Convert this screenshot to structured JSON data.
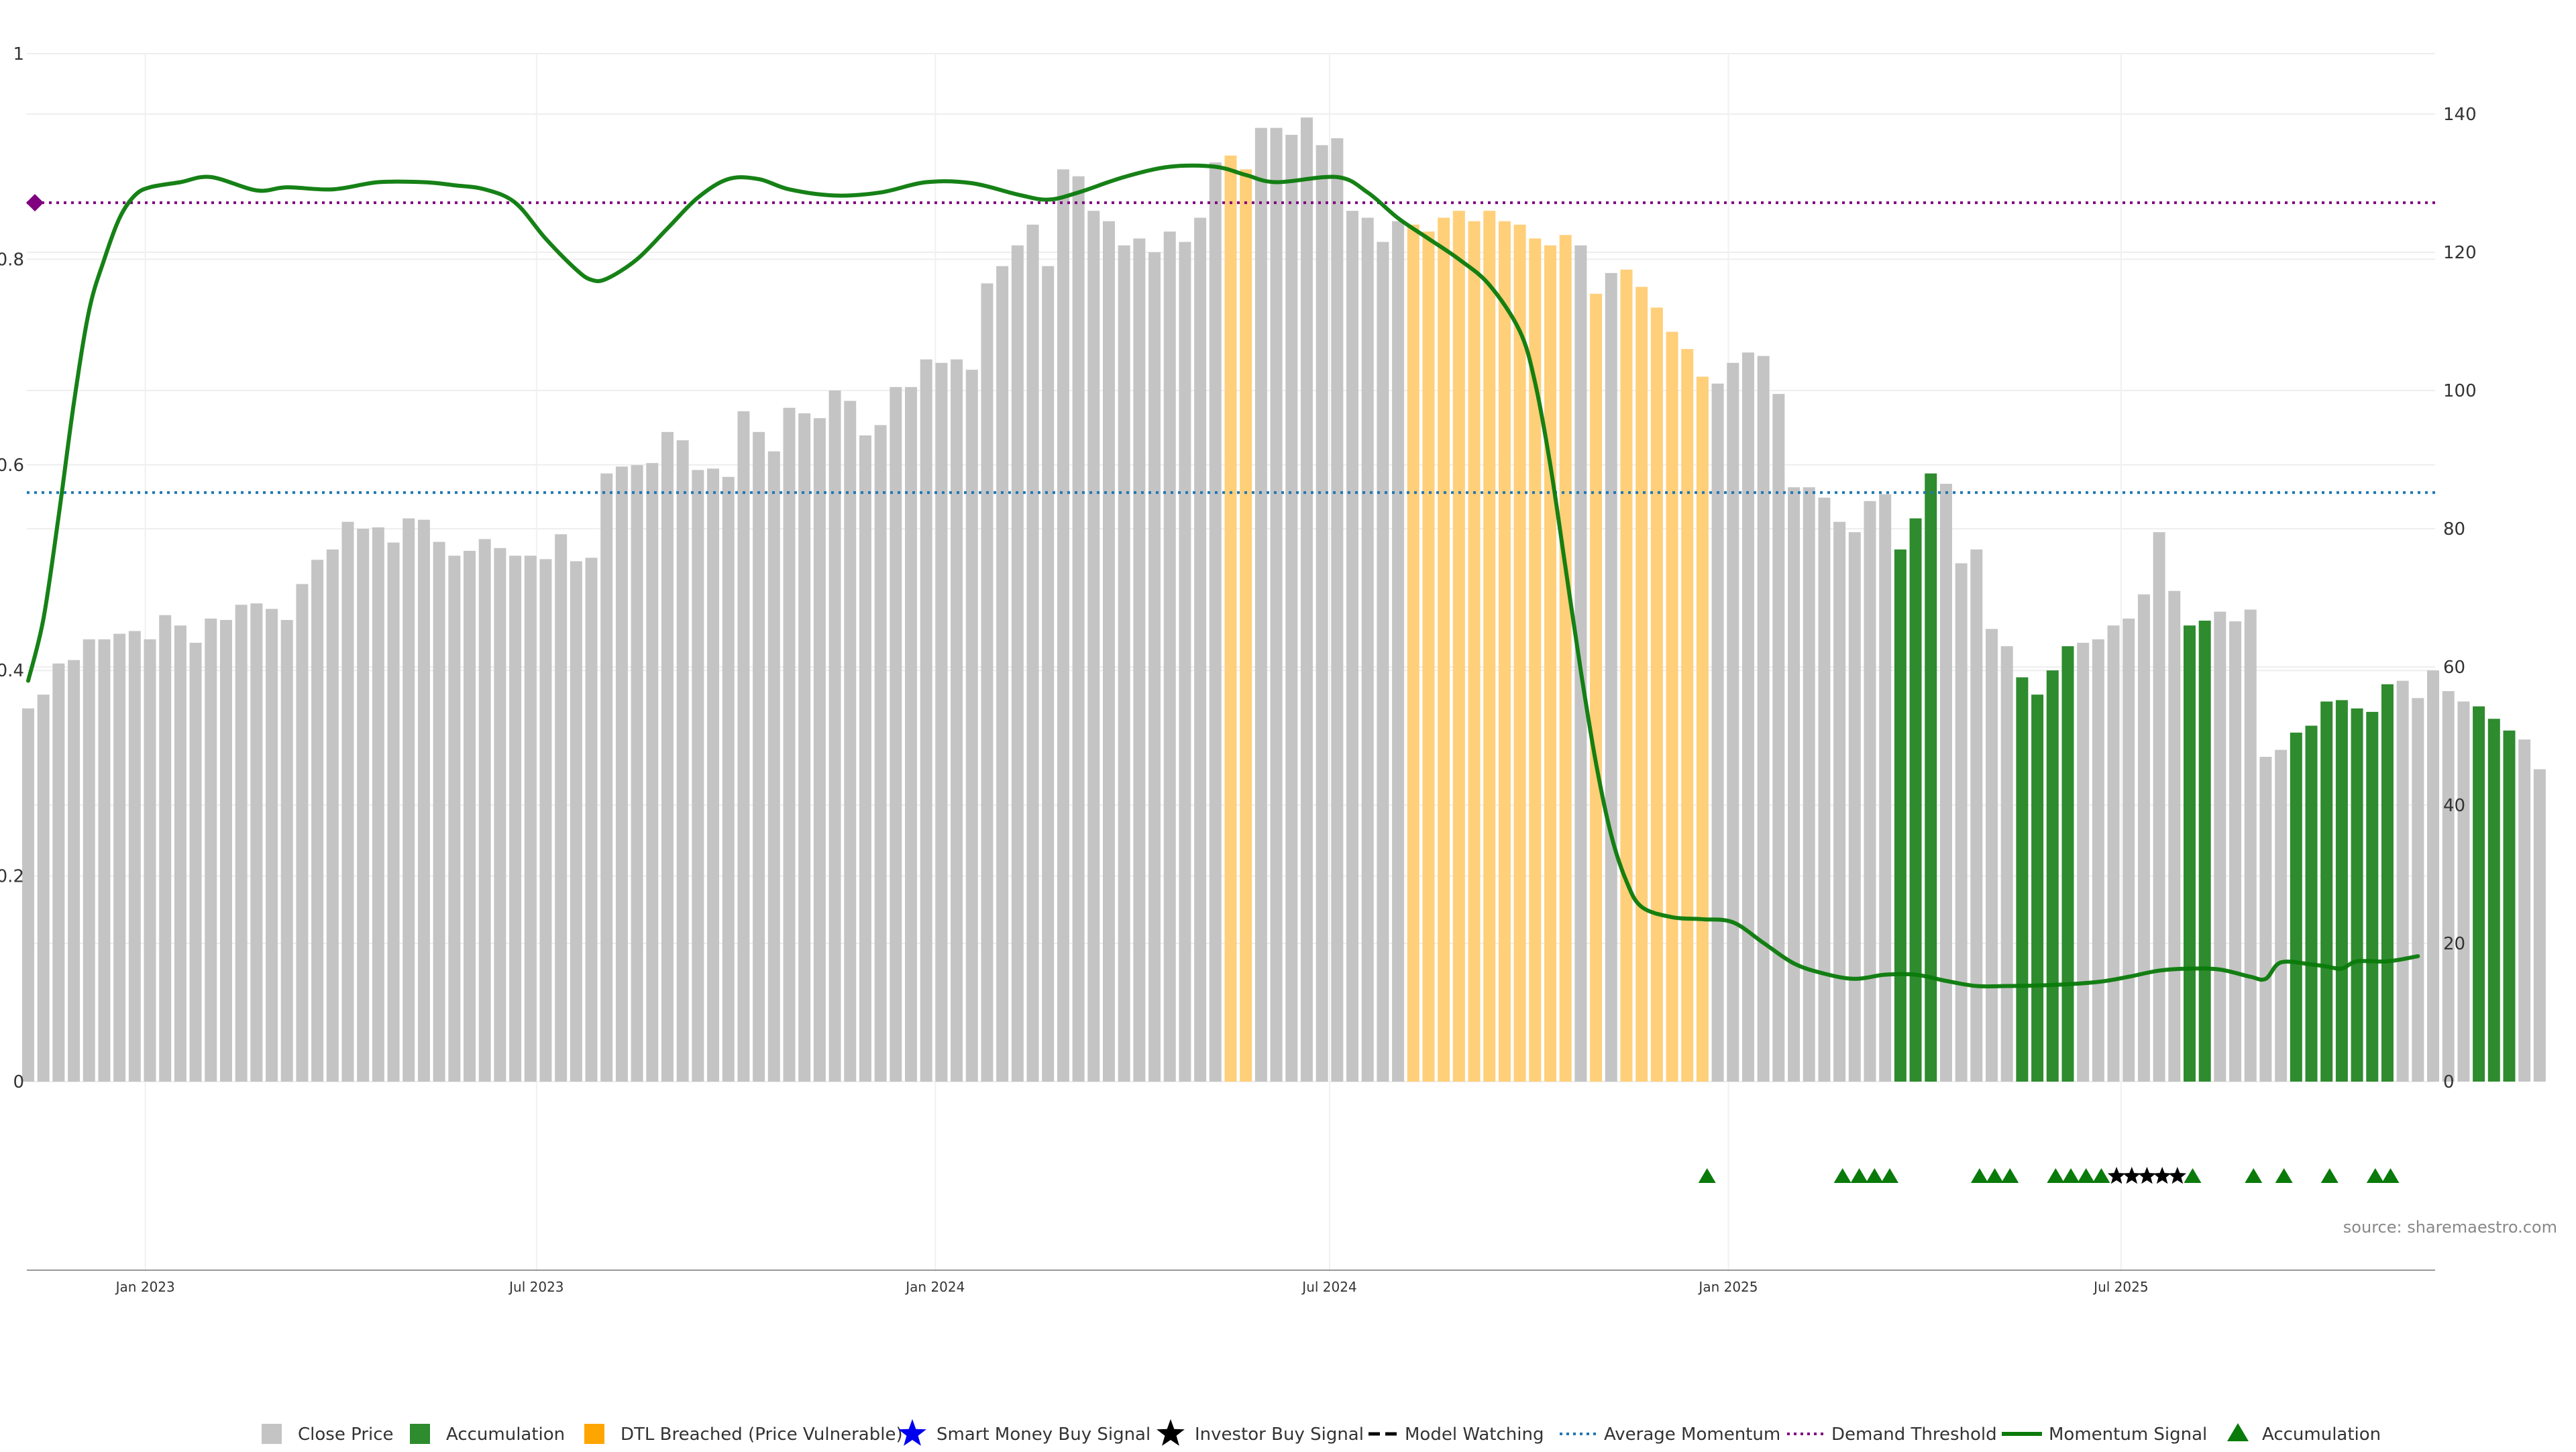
{
  "chart_data": {
    "type": "bar",
    "title": "",
    "source_text": "source: sharemaestro.com",
    "left_axis": {
      "range": [
        0,
        1
      ],
      "ticks": [
        {
          "v": 0,
          "label": "0"
        },
        {
          "v": 0.2,
          "label": "0.2"
        },
        {
          "v": 0.4,
          "label": "0.4"
        },
        {
          "v": 0.6,
          "label": "0.6"
        },
        {
          "v": 0.8,
          "label": "0.8"
        },
        {
          "v": 1,
          "label": "1"
        }
      ]
    },
    "right_axis": {
      "range": [
        0,
        149
      ],
      "ticks": [
        {
          "v": 0,
          "label": "0"
        },
        {
          "v": 20,
          "label": "20"
        },
        {
          "v": 40,
          "label": "40"
        },
        {
          "v": 60,
          "label": "60"
        },
        {
          "v": 80,
          "label": "80"
        },
        {
          "v": 100,
          "label": "100"
        },
        {
          "v": 120,
          "label": "120"
        },
        {
          "v": 140,
          "label": "140"
        }
      ]
    },
    "x_ticks": [
      {
        "label": "Jan 2023",
        "index": 7.7
      },
      {
        "label": "Jul 2023",
        "index": 33.4
      },
      {
        "label": "Jan 2024",
        "index": 59.6
      },
      {
        "label": "Jul 2024",
        "index": 85.5
      },
      {
        "label": "Jan 2025",
        "index": 111.7
      },
      {
        "label": "Jul 2025",
        "index": 137.5
      }
    ],
    "grid": true,
    "legend_position": "bottom",
    "colors": {
      "close": "#c4c4c4",
      "accumulation": "#2e8b2e",
      "dtl": "#ffcf7a",
      "momentum": "#0a7a0a",
      "average_momentum": "#1f77b4",
      "demand_threshold": "#800080",
      "smart_money": "#0000ee",
      "investor": "#000000",
      "triangle": "#0a7a0a"
    },
    "close_price": [
      54,
      56,
      60.5,
      61,
      64,
      64,
      64.8,
      65.2,
      64,
      67.5,
      66,
      63.5,
      67,
      66.8,
      69,
      69.2,
      68.4,
      66.8,
      72,
      75.5,
      77,
      81,
      80,
      80.2,
      78,
      81.5,
      81.3,
      78.1,
      76.1,
      76.8,
      78.5,
      77.2,
      76.1,
      76.1,
      75.6,
      79.2,
      75.3,
      75.8,
      88,
      89,
      89.2,
      89.5,
      94,
      92.8,
      88.5,
      88.7,
      87.5,
      97,
      94,
      91.2,
      97.5,
      96.7,
      96,
      100,
      98.5,
      93.5,
      95,
      100.5,
      100.5,
      104.5,
      104,
      104.5,
      103,
      115.5,
      118,
      121,
      124,
      118,
      132,
      131,
      126,
      124.5,
      121,
      122,
      120,
      123,
      121.5,
      125,
      133,
      134,
      132,
      138,
      138,
      137,
      139.5,
      135.5,
      136.5,
      126,
      125,
      121.5,
      124.5,
      124,
      123,
      125,
      126,
      124.5,
      126,
      124.5,
      124,
      122,
      121,
      122.5,
      121,
      114,
      117,
      117.5,
      115,
      112,
      108.5,
      106,
      102,
      101,
      104,
      105.5,
      105,
      99.5,
      86,
      86,
      84.5,
      81,
      79.5,
      84,
      85,
      77,
      81.5,
      88,
      86.5,
      75,
      77,
      65.5,
      63,
      58.5,
      56,
      59.5,
      63,
      63.5,
      64,
      66,
      67,
      70.5,
      79.5,
      71,
      66,
      66.7,
      68,
      66.6,
      68.3,
      47,
      48,
      50.5,
      51.5,
      55,
      55.2,
      54,
      53.5,
      57.5,
      58,
      55.5,
      59.5,
      56.5,
      55,
      54.3,
      52.5,
      50.8,
      49.5,
      45.2
    ],
    "bar_types": "CCCCCCCCCCCCCCCCCCCCCCCCCCCCCCCCCCCCCCCCCCCCCCCCCCCCCCCCCCCCCCCCCCCCCCCCCCCCCCCDDCCCCCCCCCCDDDDDDDDDDDCDCDDDDDDCCCCCCCCCCCCAAACCCCCAAAACCCCCCCAACCCCCAAAAAAACCCCCAAACCCCCCACCCACCCCCCCCCCCCCCCCCCCCCCCCCCCCCCCCCCCCCCCCCCCCCCCCCC",
    "momentum_signal": [
      {
        "i": 0,
        "v": 0.39
      },
      {
        "i": 1,
        "v": 0.45
      },
      {
        "i": 2,
        "v": 0.55
      },
      {
        "i": 3,
        "v": 0.66
      },
      {
        "i": 4,
        "v": 0.75
      },
      {
        "i": 5,
        "v": 0.8
      },
      {
        "i": 6,
        "v": 0.84
      },
      {
        "i": 7,
        "v": 0.862
      },
      {
        "i": 8,
        "v": 0.87
      },
      {
        "i": 10,
        "v": 0.875
      },
      {
        "i": 12,
        "v": 0.88
      },
      {
        "i": 15,
        "v": 0.867
      },
      {
        "i": 17,
        "v": 0.87
      },
      {
        "i": 20,
        "v": 0.868
      },
      {
        "i": 23,
        "v": 0.875
      },
      {
        "i": 26,
        "v": 0.875
      },
      {
        "i": 28,
        "v": 0.872
      },
      {
        "i": 30,
        "v": 0.868
      },
      {
        "i": 32,
        "v": 0.855
      },
      {
        "i": 34,
        "v": 0.82
      },
      {
        "i": 36,
        "v": 0.79
      },
      {
        "i": 37,
        "v": 0.78
      },
      {
        "i": 38,
        "v": 0.781
      },
      {
        "i": 40,
        "v": 0.8
      },
      {
        "i": 42,
        "v": 0.83
      },
      {
        "i": 44,
        "v": 0.86
      },
      {
        "i": 46,
        "v": 0.878
      },
      {
        "i": 48,
        "v": 0.878
      },
      {
        "i": 50,
        "v": 0.868
      },
      {
        "i": 53,
        "v": 0.862
      },
      {
        "i": 56,
        "v": 0.865
      },
      {
        "i": 59,
        "v": 0.875
      },
      {
        "i": 62,
        "v": 0.874
      },
      {
        "i": 65,
        "v": 0.863
      },
      {
        "i": 67,
        "v": 0.858
      },
      {
        "i": 69,
        "v": 0.865
      },
      {
        "i": 72,
        "v": 0.88
      },
      {
        "i": 75,
        "v": 0.89
      },
      {
        "i": 78,
        "v": 0.89
      },
      {
        "i": 80,
        "v": 0.882
      },
      {
        "i": 82,
        "v": 0.875
      },
      {
        "i": 86,
        "v": 0.88
      },
      {
        "i": 88,
        "v": 0.865
      },
      {
        "i": 90,
        "v": 0.84
      },
      {
        "i": 92,
        "v": 0.82
      },
      {
        "i": 94,
        "v": 0.8
      },
      {
        "i": 96,
        "v": 0.775
      },
      {
        "i": 98,
        "v": 0.73
      },
      {
        "i": 99,
        "v": 0.68
      },
      {
        "i": 100,
        "v": 0.6
      },
      {
        "i": 101,
        "v": 0.5
      },
      {
        "i": 102,
        "v": 0.4
      },
      {
        "i": 103,
        "v": 0.31
      },
      {
        "i": 104,
        "v": 0.24
      },
      {
        "i": 105,
        "v": 0.195
      },
      {
        "i": 106,
        "v": 0.17
      },
      {
        "i": 108,
        "v": 0.16
      },
      {
        "i": 110,
        "v": 0.158
      },
      {
        "i": 112,
        "v": 0.155
      },
      {
        "i": 114,
        "v": 0.135
      },
      {
        "i": 116,
        "v": 0.115
      },
      {
        "i": 118,
        "v": 0.105
      },
      {
        "i": 120,
        "v": 0.1
      },
      {
        "i": 122,
        "v": 0.104
      },
      {
        "i": 124,
        "v": 0.104
      },
      {
        "i": 126,
        "v": 0.098
      },
      {
        "i": 128,
        "v": 0.093
      },
      {
        "i": 130,
        "v": 0.093
      },
      {
        "i": 133,
        "v": 0.094
      },
      {
        "i": 136,
        "v": 0.097
      },
      {
        "i": 138,
        "v": 0.102
      },
      {
        "i": 140,
        "v": 0.108
      },
      {
        "i": 142,
        "v": 0.11
      },
      {
        "i": 144,
        "v": 0.109
      },
      {
        "i": 146,
        "v": 0.102
      },
      {
        "i": 147,
        "v": 0.1
      },
      {
        "i": 148,
        "v": 0.116
      },
      {
        "i": 150,
        "v": 0.114
      },
      {
        "i": 151,
        "v": 0.112
      },
      {
        "i": 152,
        "v": 0.11
      },
      {
        "i": 153,
        "v": 0.117
      },
      {
        "i": 155,
        "v": 0.117
      },
      {
        "i": 157,
        "v": 0.122
      }
    ],
    "average_momentum": 0.573,
    "demand_threshold": 0.855,
    "accumulation_triangles": [
      110.3,
      119.2,
      120.3,
      121.3,
      122.3,
      128.2,
      129.2,
      130.2,
      133.2,
      134.2,
      135.2,
      136.2,
      142.2,
      146.2,
      148.2,
      151.2,
      154.2,
      155.2
    ],
    "investor_stars": [
      137.2,
      138.2,
      139.2,
      140.2,
      141.2
    ],
    "legend": [
      {
        "kind": "square",
        "color": "#c4c4c4",
        "label": "Close Price"
      },
      {
        "kind": "square",
        "color": "#2e8b2e",
        "label": "Accumulation"
      },
      {
        "kind": "square",
        "color": "#ffa500",
        "label": "DTL Breached (Price Vulnerable)"
      },
      {
        "kind": "star",
        "color": "#0000ee",
        "label": "Smart Money Buy Signal"
      },
      {
        "kind": "star",
        "color": "#000000",
        "label": "Investor Buy Signal"
      },
      {
        "kind": "dash",
        "color": "#000000",
        "label": "Model Watching"
      },
      {
        "kind": "dotted",
        "color": "#1f77b4",
        "label": "Average Momentum"
      },
      {
        "kind": "dotted",
        "color": "#800080",
        "label": "Demand Threshold"
      },
      {
        "kind": "line",
        "color": "#0a7a0a",
        "label": "Momentum Signal"
      },
      {
        "kind": "triangle",
        "color": "#0a7a0a",
        "label": "Accumulation"
      }
    ]
  }
}
